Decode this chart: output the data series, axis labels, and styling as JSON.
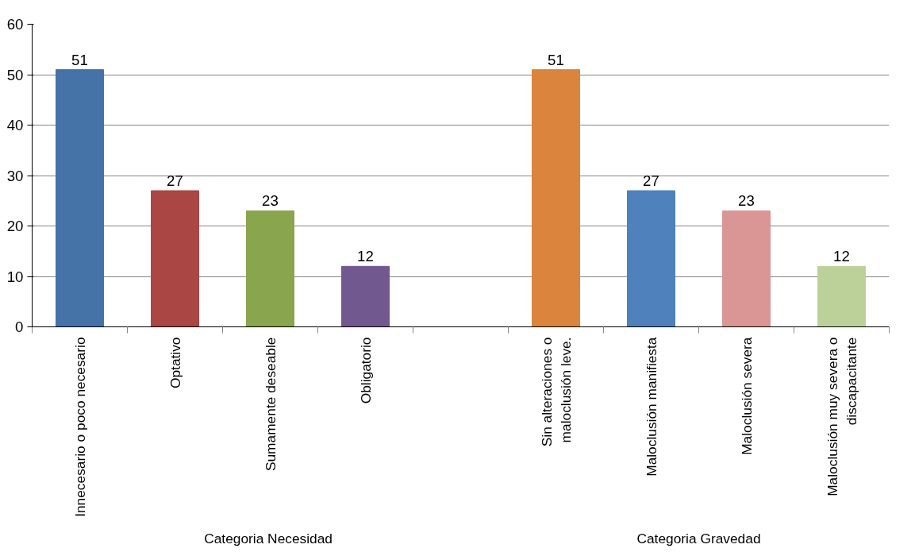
{
  "chart_data": {
    "type": "bar",
    "categories": [
      "Innecesario o poco necesario",
      "Optativo",
      "Sumamente deseable",
      "Obligatorio",
      null,
      "Sin alteraciones o maloclusión leve.",
      "Maloclusión manifiesta",
      "Maloclusión severa",
      "Maloclusión muy severa o discapacitante"
    ],
    "values": [
      51,
      27,
      23,
      12,
      null,
      51,
      27,
      23,
      12
    ],
    "colors": [
      "#4572a7",
      "#aa4643",
      "#89a54e",
      "#71588f",
      "#ffffff",
      "#db843d",
      "#4f81bd",
      "#d99694",
      "#bcd19a"
    ],
    "annotations": [
      "Categoria  Necesidad",
      "Categoria Gravedad"
    ],
    "ylim": [
      0,
      60
    ],
    "yticks": [
      0,
      10,
      20,
      30,
      40,
      50,
      60
    ],
    "grid": "y",
    "data_labels": true
  }
}
